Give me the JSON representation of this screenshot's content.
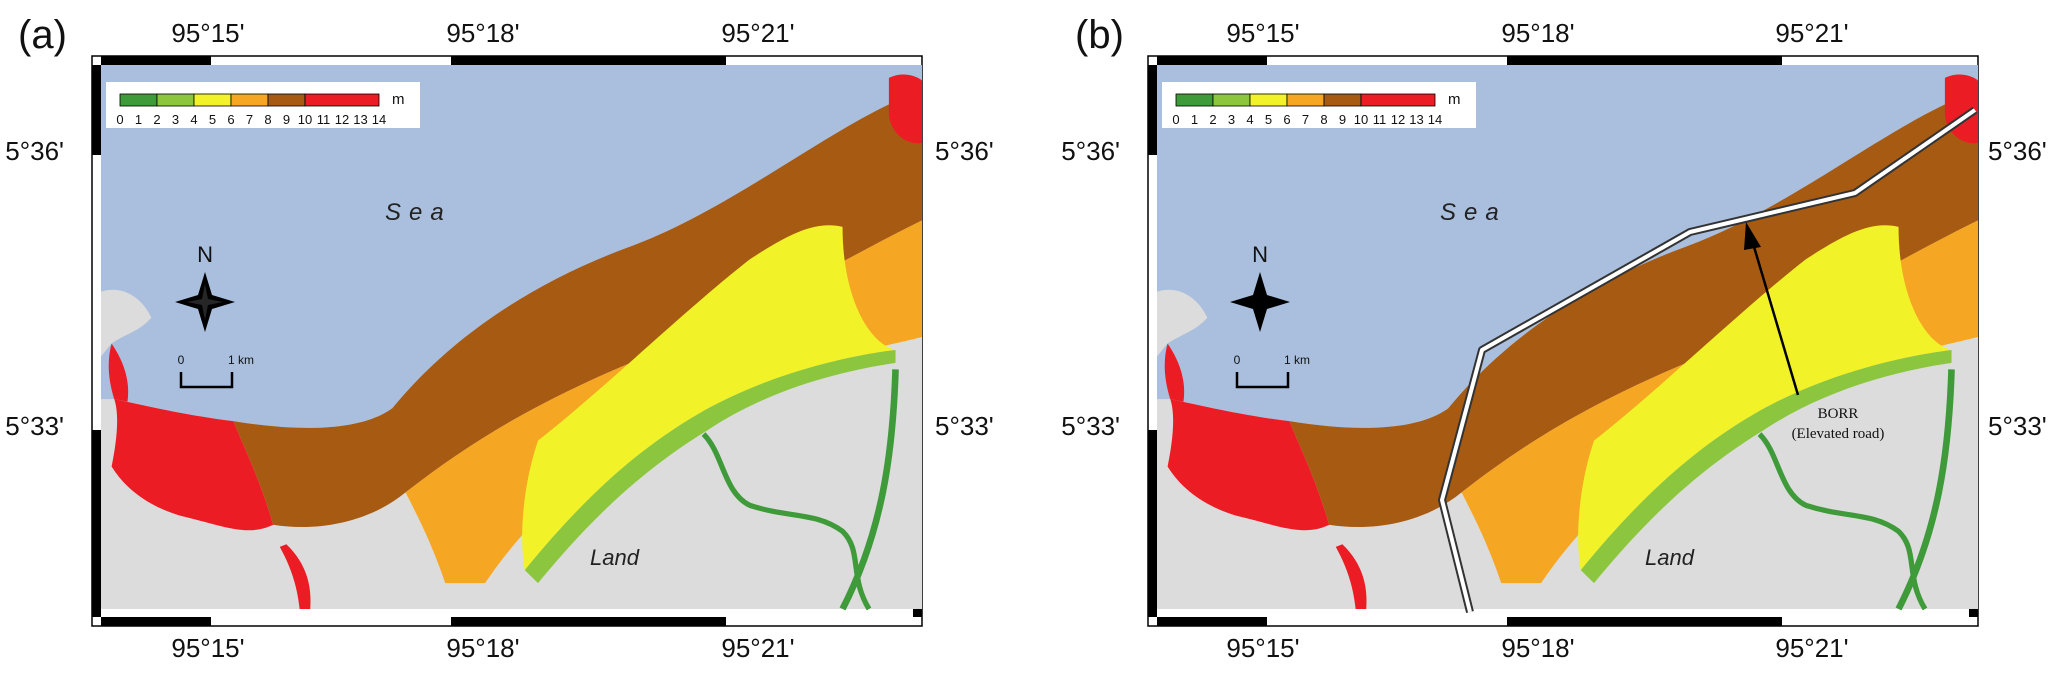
{
  "colors": {
    "sea": "#a9bfdd",
    "land": "#dcdcdc",
    "zones": [
      "#3f9a3a",
      "#8cc63f",
      "#f2f228",
      "#f5a623",
      "#a65a12",
      "#ec1c24"
    ]
  },
  "legend": {
    "ticks": [
      "0",
      "1",
      "2",
      "3",
      "4",
      "5",
      "6",
      "7",
      "8",
      "9",
      "10",
      "11",
      "12",
      "13",
      "14"
    ],
    "unit": "m"
  },
  "axes": {
    "lon_ticks": [
      "95°15'",
      "95°18'",
      "95°21'"
    ],
    "lat_ticks": [
      "5°36'",
      "5°33'"
    ]
  },
  "labels": {
    "sea": "Sea",
    "land": "Land",
    "north": "N",
    "scale_zero": "0",
    "scale_km": "1 km"
  },
  "panels": [
    {
      "id": "a",
      "label": "(a)"
    },
    {
      "id": "b",
      "label": "(b)",
      "annotation": [
        "BORR",
        "(Elevated road)"
      ]
    }
  ]
}
